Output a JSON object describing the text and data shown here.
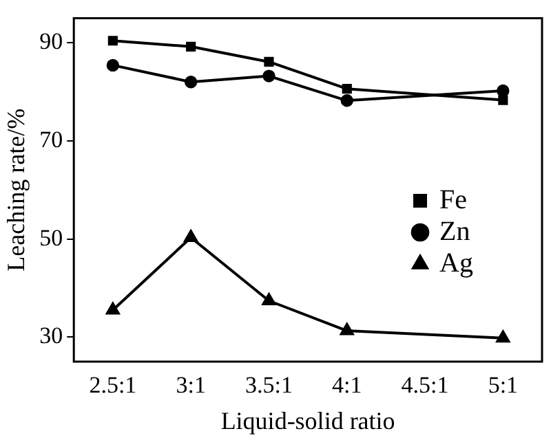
{
  "chart_data": {
    "type": "line",
    "xlabel": "Liquid-solid ratio",
    "ylabel": "Leaching rate/%",
    "categories": [
      "2.5:1",
      "3:1",
      "3.5:1",
      "4:1",
      "4.5:1",
      "5:1"
    ],
    "ylim": [
      25,
      95
    ],
    "yticks": [
      30,
      50,
      70,
      90
    ],
    "series": [
      {
        "name": "Fe",
        "color": "#000000",
        "marker": "square",
        "values": [
          90.4,
          89.2,
          86.1,
          80.6,
          null,
          78.3
        ]
      },
      {
        "name": "Zn",
        "color": "#000000",
        "marker": "circle",
        "values": [
          85.4,
          82.0,
          83.2,
          78.2,
          null,
          80.2
        ]
      },
      {
        "name": "Ag",
        "color": "#000000",
        "marker": "triangle",
        "values": [
          35.5,
          50.3,
          37.4,
          31.3,
          null,
          29.8
        ]
      }
    ],
    "grid": false,
    "legend": "right",
    "line_style": "solid"
  }
}
